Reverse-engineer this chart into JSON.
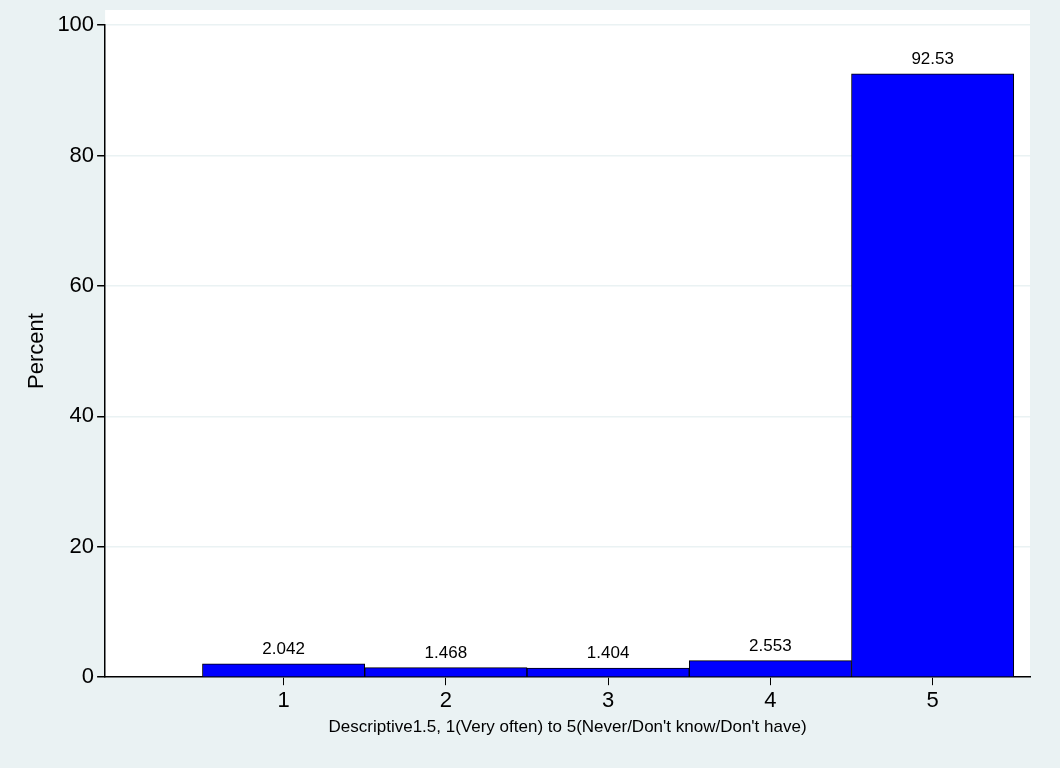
{
  "chart_data": {
    "type": "histogram",
    "xlabel": "Descriptive1.5, 1(Very often) to 5(Never/Don't know/Don't have)",
    "ylabel": "Percent",
    "bins": [
      0.5,
      1.5,
      2.5,
      3.5,
      4.5,
      5.5
    ],
    "values": [
      2.042,
      1.468,
      1.404,
      2.553,
      92.53
    ],
    "color": "#0000ff",
    "data_labels": true,
    "xlim": [
      -0.1,
      5.6
    ],
    "xticks": [
      1,
      2,
      3,
      4,
      5
    ],
    "ylim": [
      0,
      100
    ],
    "yticks": [
      0,
      20,
      40,
      60,
      80,
      100
    ],
    "grid": "y",
    "legend": false
  }
}
